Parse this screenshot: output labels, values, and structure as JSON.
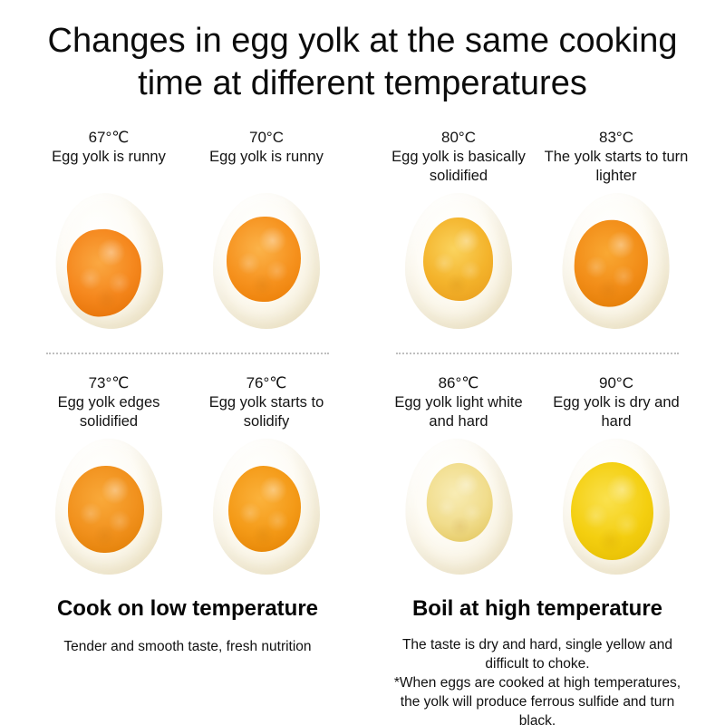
{
  "title": "Changes in egg yolk at the same cooking time at different temperatures",
  "eggs": [
    {
      "temp": "67°℃",
      "desc": "Egg yolk is runny",
      "colors": {
        "hi": "#faa842",
        "mid": "#f5871d",
        "dark": "#e06c00"
      }
    },
    {
      "temp": "70°C",
      "desc": "Egg yolk is runny",
      "colors": {
        "hi": "#fbb34a",
        "mid": "#f6921e",
        "dark": "#e87900"
      }
    },
    {
      "temp": "73°℃",
      "desc": "Egg yolk edges solidified",
      "colors": {
        "hi": "#f9a93a",
        "mid": "#f1911d",
        "dark": "#dd7a00"
      }
    },
    {
      "temp": "76°℃",
      "desc": "Egg yolk starts to solidify",
      "colors": {
        "hi": "#fbb23c",
        "mid": "#f49a17",
        "dark": "#e07e00"
      }
    },
    {
      "temp": "80°C",
      "desc": "Egg yolk is basically solidified",
      "colors": {
        "hi": "#fad35e",
        "mid": "#f4b42c",
        "dark": "#e79a1a"
      }
    },
    {
      "temp": "83°C",
      "desc": "The yolk starts to turn lighter",
      "colors": {
        "hi": "#f9a833",
        "mid": "#f28d18",
        "dark": "#de7800"
      }
    },
    {
      "temp": "86°℃",
      "desc": "Egg yolk light white and hard",
      "colors": {
        "hi": "#f8ecb4",
        "mid": "#f1dd8d",
        "dark": "#e0c255"
      }
    },
    {
      "temp": "90°C",
      "desc": "Egg yolk is dry and hard",
      "colors": {
        "hi": "#fae14e",
        "mid": "#f4cf10",
        "dark": "#e2b900"
      }
    }
  ],
  "footer": {
    "low": {
      "heading": "Cook on low temperature",
      "body": "Tender and smooth taste, fresh nutrition"
    },
    "high": {
      "heading": "Boil at high temperature",
      "body_line1": "The taste is dry and hard, single yellow and difficult to choke.",
      "body_line2": "*When eggs are cooked at high temperatures, the yolk will produce ferrous sulfide and turn black."
    }
  }
}
